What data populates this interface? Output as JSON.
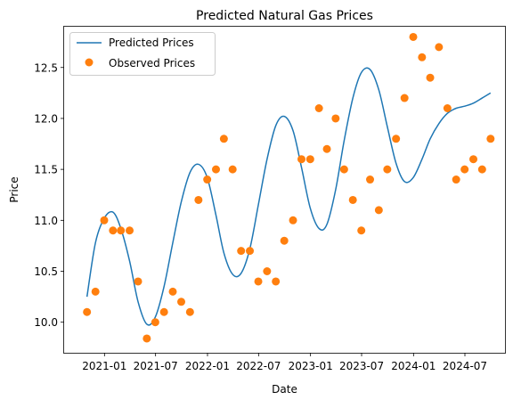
{
  "chart_data": {
    "type": "line",
    "title": "Predicted Natural Gas Prices",
    "xlabel": "Date",
    "ylabel": "Price",
    "x_tick_labels": [
      "2021-01",
      "2021-07",
      "2022-01",
      "2022-07",
      "2023-01",
      "2023-07",
      "2024-01",
      "2024-07"
    ],
    "y_tick_labels": [
      "10.0",
      "10.5",
      "11.0",
      "11.5",
      "12.0",
      "12.5"
    ],
    "ylim": [
      9.7,
      12.9
    ],
    "xlim": [
      "2020-08-11",
      "2024-11-20"
    ],
    "grid": false,
    "legend_position": "top-left",
    "colors": {
      "predicted": "#1f77b4",
      "observed": "#ff7f0e"
    },
    "series": [
      {
        "name": "Predicted Prices",
        "kind": "line",
        "x": [
          "2020-10-31",
          "2020-11-30",
          "2020-12-31",
          "2021-01-31",
          "2021-02-28",
          "2021-03-31",
          "2021-04-30",
          "2021-05-31",
          "2021-06-30",
          "2021-07-31",
          "2021-08-31",
          "2021-09-30",
          "2021-10-31",
          "2021-11-30",
          "2021-12-31",
          "2022-01-31",
          "2022-02-28",
          "2022-03-31",
          "2022-04-30",
          "2022-05-31",
          "2022-06-30",
          "2022-07-31",
          "2022-08-31",
          "2022-09-30",
          "2022-10-31",
          "2022-11-30",
          "2022-12-31",
          "2023-01-31",
          "2023-02-28",
          "2023-03-31",
          "2023-04-30",
          "2023-05-31",
          "2023-06-30",
          "2023-07-31",
          "2023-08-31",
          "2023-09-30",
          "2023-10-31",
          "2023-11-30",
          "2023-12-31",
          "2024-01-31",
          "2024-02-29",
          "2024-03-31",
          "2024-04-30",
          "2024-05-31",
          "2024-06-30",
          "2024-07-31",
          "2024-08-31",
          "2024-09-30"
        ],
        "y": [
          10.25,
          10.78,
          11.02,
          11.08,
          10.92,
          10.6,
          10.2,
          9.98,
          10.05,
          10.35,
          10.78,
          11.18,
          11.47,
          11.55,
          11.42,
          11.05,
          10.68,
          10.47,
          10.48,
          10.72,
          11.15,
          11.6,
          11.93,
          12.02,
          11.88,
          11.52,
          11.12,
          10.92,
          10.96,
          11.3,
          11.78,
          12.2,
          12.45,
          12.48,
          12.28,
          11.92,
          11.56,
          11.38,
          11.42,
          11.6,
          11.8,
          11.95,
          12.05,
          12.1,
          12.12,
          12.15,
          12.2,
          12.25
        ],
        "note_unused": ""
      },
      {
        "name": "Observed Prices",
        "kind": "scatter",
        "x": [
          "2020-10-31",
          "2020-11-30",
          "2020-12-31",
          "2021-01-31",
          "2021-02-28",
          "2021-03-31",
          "2021-04-30",
          "2021-05-31",
          "2021-06-30",
          "2021-07-31",
          "2021-08-31",
          "2021-09-30",
          "2021-10-31",
          "2021-11-30",
          "2021-12-31",
          "2022-01-31",
          "2022-02-28",
          "2022-03-31",
          "2022-04-30",
          "2022-05-31",
          "2022-06-30",
          "2022-07-31",
          "2022-08-31",
          "2022-09-30",
          "2022-10-31",
          "2022-11-30",
          "2022-12-31",
          "2023-01-31",
          "2023-02-28",
          "2023-03-31",
          "2023-04-30",
          "2023-05-31",
          "2023-06-30",
          "2023-07-31",
          "2023-08-31",
          "2023-09-30",
          "2023-10-31",
          "2023-11-30",
          "2023-12-31",
          "2024-01-31",
          "2024-02-29",
          "2024-03-31",
          "2024-04-30",
          "2024-05-31",
          "2024-06-30",
          "2024-07-31",
          "2024-08-31",
          "2024-09-30"
        ],
        "y": [
          10.1,
          10.3,
          11.0,
          10.9,
          10.9,
          10.9,
          10.4,
          9.84,
          10.0,
          10.1,
          10.3,
          10.2,
          10.1,
          11.2,
          11.4,
          11.5,
          11.8,
          11.5,
          10.7,
          10.7,
          10.4,
          10.5,
          10.4,
          10.8,
          11.0,
          11.6,
          11.6,
          12.1,
          11.7,
          12.0,
          11.5,
          11.2,
          10.9,
          11.4,
          11.1,
          11.5,
          11.8,
          12.2,
          12.8,
          12.6,
          12.4,
          12.7,
          12.1,
          11.4,
          11.5,
          11.6,
          11.5,
          11.8
        ]
      }
    ]
  }
}
